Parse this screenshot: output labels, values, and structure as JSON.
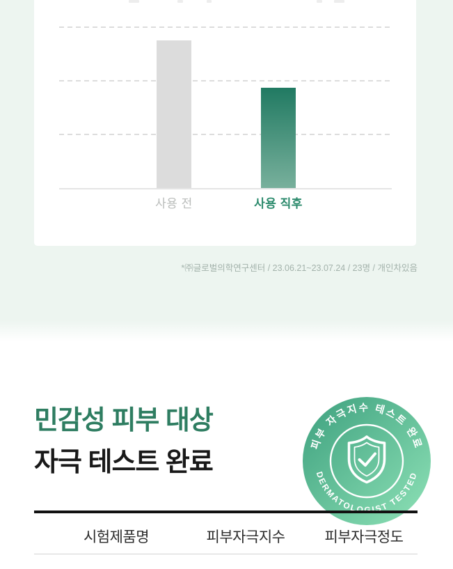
{
  "page": {
    "background": "#ffffff",
    "mint_background": "#edf5f0"
  },
  "chart_section": {
    "card_background": "#ffffff",
    "footnote": "*㈜글로벌의학연구센터 / 23.06.21~23.07.24 / 23명 / 개인차있음",
    "footnote_color": "#a3b2ab"
  },
  "chart_data": {
    "type": "bar",
    "title": "",
    "xlabel": "",
    "ylabel": "",
    "categories": [
      "사용 전",
      "사용 직후"
    ],
    "values": [
      2.72,
      1.85
    ],
    "value_note": "no numeric axis labels visible; values estimated in gridline units (gridlines at 1, 2, 3)",
    "ylim": [
      0,
      3.5
    ],
    "gridline_values": [
      1,
      2,
      3
    ],
    "grid_style": "horizontal dashed",
    "legend_position": "none",
    "bar_colors": {
      "before": "#dcdcdc",
      "after_gradient_top": "#217a62",
      "after_gradient_bottom": "#78b09c"
    },
    "category_label_colors": {
      "before": "#b9bcba",
      "after": "#2b8a6c"
    }
  },
  "headline": {
    "line1": "민감성 피부 대상",
    "line2": "자극 테스트 완료",
    "line1_color": "#2e7d61",
    "line2_color": "#191919"
  },
  "badge": {
    "arc_top_text": "피부 자극지수 테스트 완료",
    "arc_bottom_text": "DERMATOLOGIST TESTED",
    "icon": "shield-check",
    "gradient_start": "#3da07e",
    "gradient_end": "#8fe2b7"
  },
  "table": {
    "headers": [
      "시험제품명",
      "피부자극지수",
      "피부자극정도"
    ]
  }
}
